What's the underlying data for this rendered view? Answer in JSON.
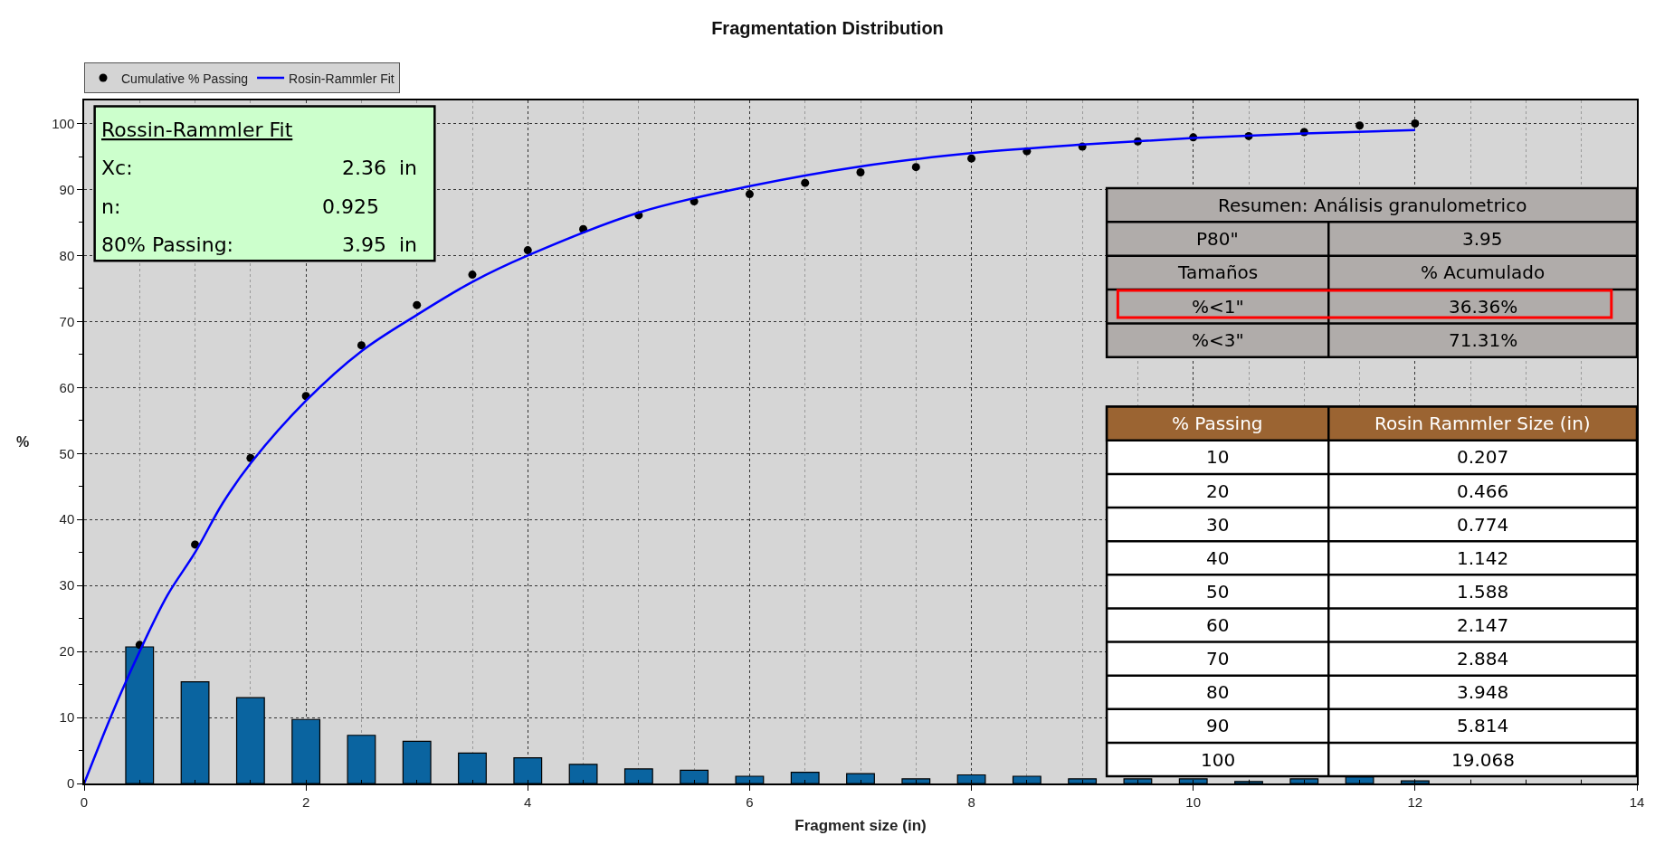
{
  "chart_data": {
    "type": "bar",
    "title": "Fragmentation Distribution",
    "xlabel": "Fragment size (in)",
    "ylabel": "%",
    "xlim": [
      0,
      14
    ],
    "xticks": [
      0,
      2,
      4,
      6,
      8,
      10,
      12,
      14
    ],
    "ylim": [
      0,
      103.5
    ],
    "yticks": [
      0,
      10,
      20,
      30,
      40,
      50,
      60,
      70,
      80,
      90,
      100
    ],
    "grid": true,
    "legend": "top left",
    "series": [
      {
        "color": "#0a64a0",
        "x": [
          0.5,
          1,
          1.5,
          2,
          2.5,
          3,
          3.5,
          4,
          4.5,
          5,
          5.5,
          6,
          6.5,
          7,
          7.5,
          8,
          8.5,
          9,
          9.5,
          10,
          10.5,
          11,
          11.5,
          12
        ],
        "values": [
          20.7,
          15.4,
          13.0,
          9.7,
          7.3,
          6.4,
          4.6,
          3.9,
          2.9,
          2.2,
          2.0,
          1.1,
          1.7,
          1.5,
          0.7,
          1.3,
          1.1,
          0.7,
          0.7,
          0.7,
          0.3,
          0.7,
          1.0,
          0.4
        ]
      },
      {
        "type": "scatter",
        "name": "Cumulative % Passing",
        "color": "#000000",
        "marker": "circle",
        "x": [
          0.5,
          1,
          1.5,
          2,
          2.5,
          3,
          3.5,
          4,
          4.5,
          5,
          5.5,
          6,
          6.5,
          7,
          7.5,
          8,
          8.5,
          9,
          9.5,
          10,
          10.5,
          11,
          11.5,
          12
        ],
        "values": [
          21.0,
          36.2,
          49.3,
          58.7,
          66.4,
          72.5,
          77.1,
          80.8,
          84.0,
          86.1,
          88.2,
          89.3,
          91.0,
          92.6,
          93.4,
          94.7,
          95.8,
          96.5,
          97.3,
          97.9,
          98.1,
          98.7,
          99.7,
          100
        ]
      },
      {
        "type": "line",
        "name": "Rosin-Rammler Fit",
        "color": "#0000ff",
        "line_style": "solid",
        "x": [
          0,
          0.25,
          0.5,
          0.75,
          1,
          1.25,
          1.5,
          2,
          2.5,
          3,
          3.5,
          4,
          5,
          6,
          7,
          8,
          9,
          10,
          11,
          12
        ],
        "values": [
          0,
          10.5,
          20,
          28.5,
          35,
          42.5,
          48.5,
          58,
          65.5,
          71,
          76,
          80,
          86.5,
          90.5,
          93.5,
          95.5,
          96.8,
          97.8,
          98.5,
          99
        ]
      }
    ],
    "annotations": [
      "Rossin-Rammler Fit",
      "Xc:",
      "2.36  in",
      "n:",
      "0.925",
      "80% Passing:",
      "3.95  in",
      "Resumen: Análisis granulometrico",
      "P80\"",
      "3.95",
      "Tamaños",
      "% Acumulado",
      "%<1\"",
      "36.36%",
      "%<3\"",
      "71.31%",
      "% Passing",
      "Rosin Rammler Size (in)",
      "10",
      "0.207",
      "20",
      "0.466",
      "30",
      "0.774",
      "40",
      "1.142",
      "50",
      "1.588",
      "60",
      "2.147",
      "70",
      "2.884",
      "80",
      "3.948",
      "90",
      "5.814",
      "100",
      "19.068"
    ]
  }
}
